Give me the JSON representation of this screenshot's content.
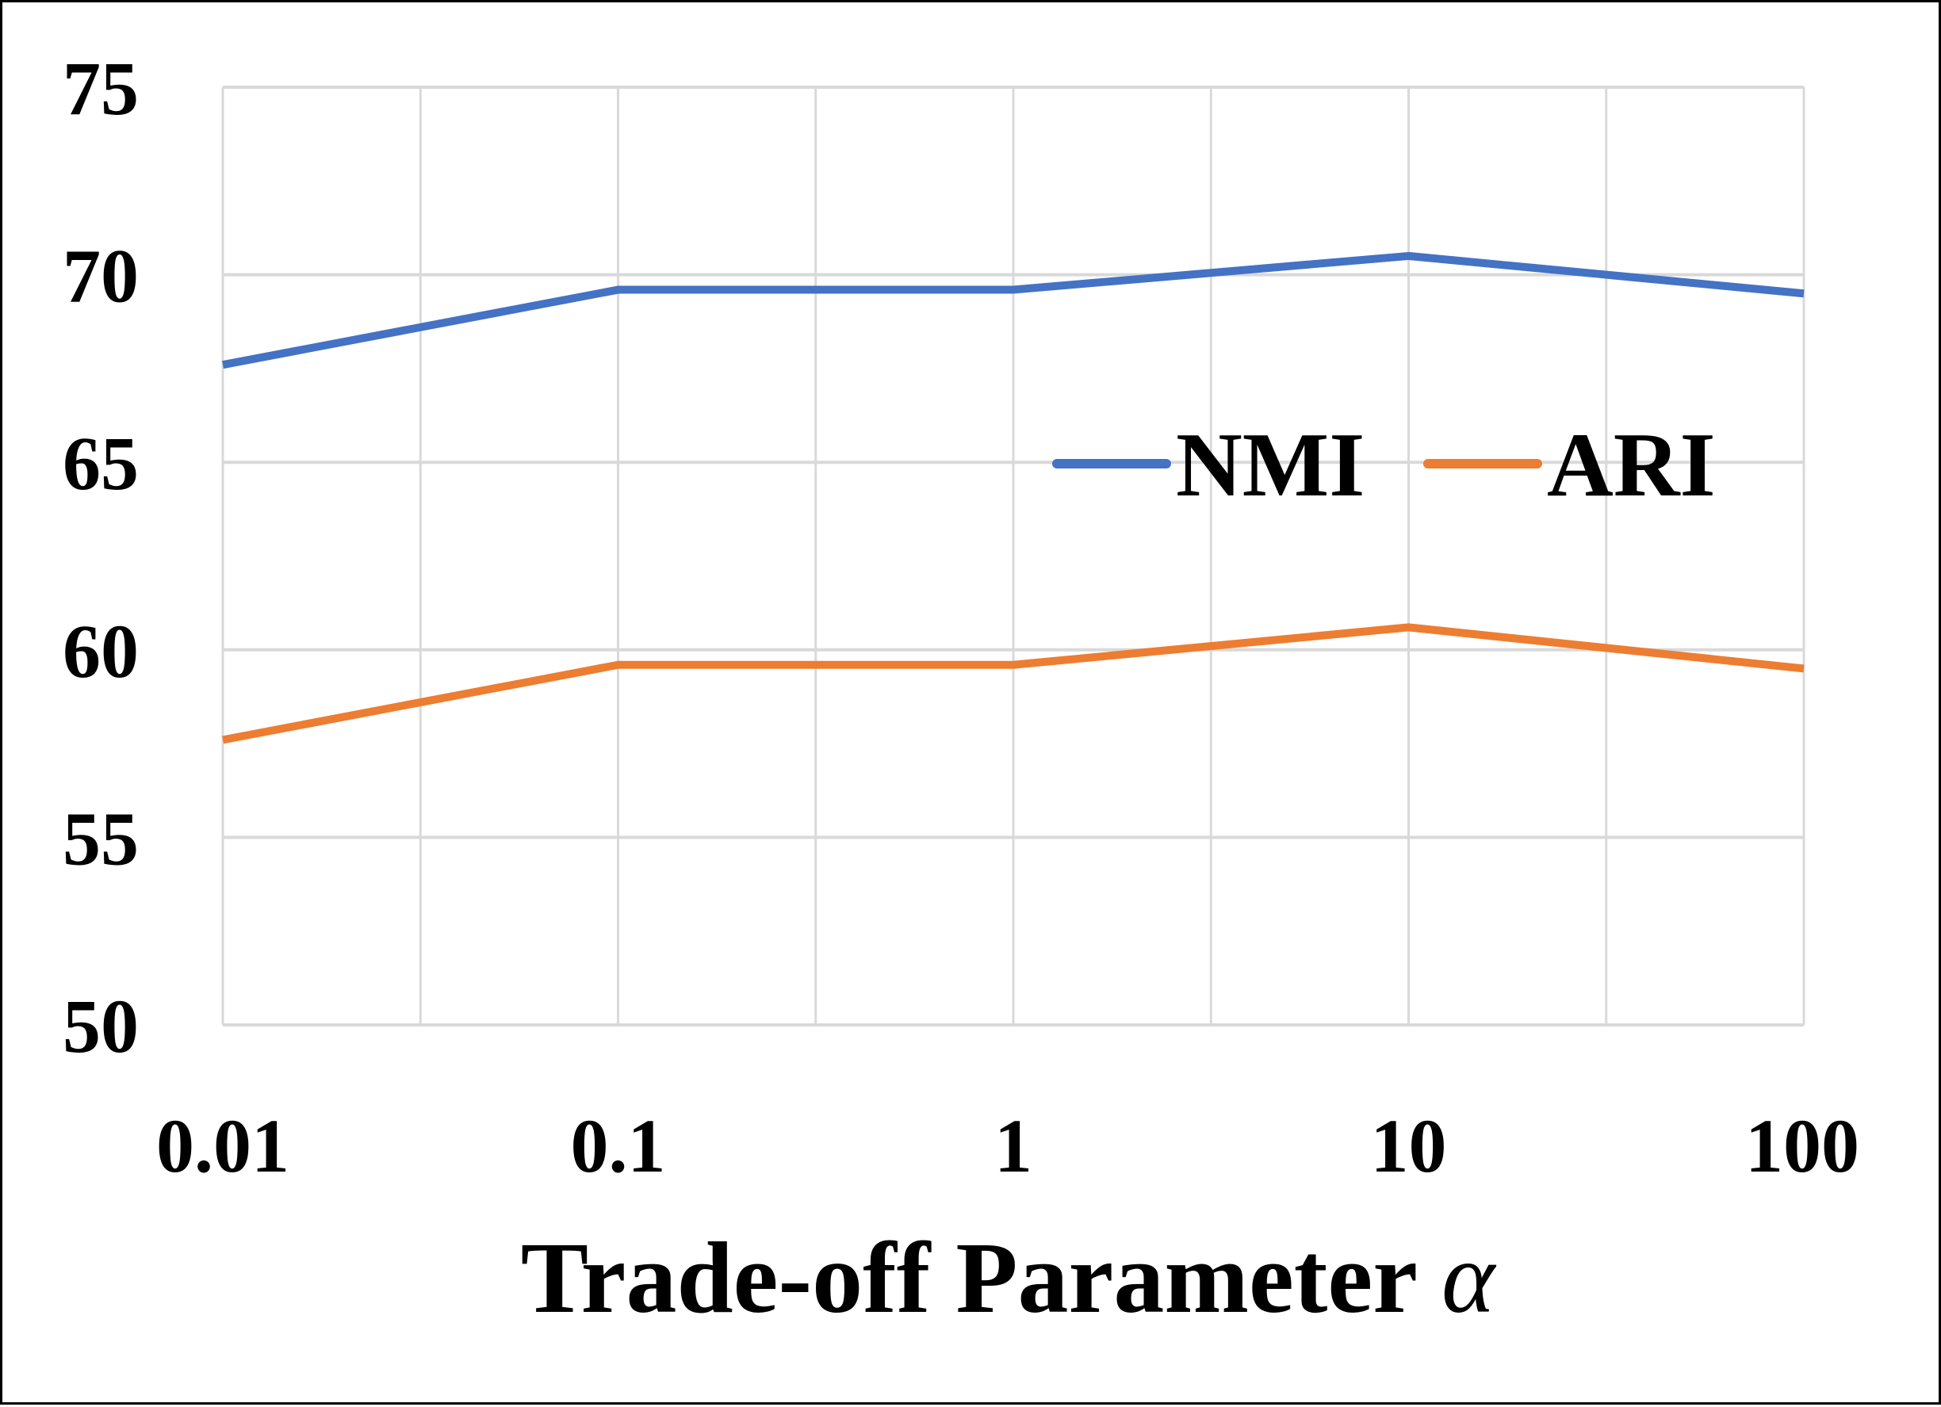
{
  "chart_data": {
    "type": "line",
    "title": "",
    "xlabel": "Trade-off Parameter",
    "xlabel_symbol": "α",
    "ylabel": "",
    "categories": [
      "0.01",
      "0.1",
      "1",
      "10",
      "100"
    ],
    "ylim": [
      50,
      75
    ],
    "yticks": [
      "50",
      "55",
      "60",
      "65",
      "70",
      "75"
    ],
    "grid": true,
    "legend_position": "center-right",
    "series": [
      {
        "name": "NMI",
        "color": "#4472C4",
        "values": [
          67.6,
          69.6,
          69.6,
          70.5,
          69.5
        ]
      },
      {
        "name": "ARI",
        "color": "#ED7D31",
        "values": [
          57.6,
          59.6,
          59.6,
          60.6,
          59.5
        ]
      }
    ]
  }
}
